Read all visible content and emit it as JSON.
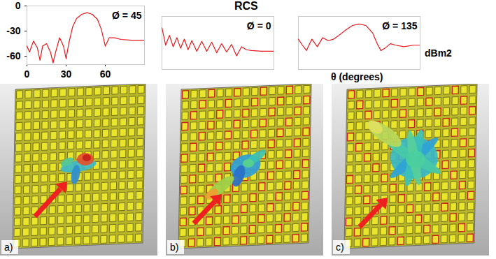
{
  "title": "RCS",
  "panels": [
    "a)",
    "b)",
    "c)"
  ],
  "chart_data": [
    {
      "type": "line",
      "annotation": "Ø = 45",
      "color": "#e8191e",
      "x": [
        0,
        2,
        5,
        8,
        10,
        12,
        15,
        18,
        20,
        22,
        25,
        28,
        30,
        32,
        35,
        38,
        42,
        46,
        50,
        54,
        57,
        60,
        63,
        67,
        72,
        80,
        90
      ],
      "values": [
        -48,
        -55,
        -42,
        -50,
        -65,
        -48,
        -45,
        -55,
        -68,
        -55,
        -38,
        -48,
        -63,
        -45,
        -25,
        -15,
        -10,
        -8,
        -10,
        -16,
        -28,
        -48,
        -38,
        -38,
        -40,
        -41,
        -41
      ],
      "xlim": [
        0,
        90
      ],
      "xticks": [
        0,
        30,
        60
      ],
      "ylim": [
        -70,
        0
      ],
      "yticks": [
        0,
        -30,
        -60
      ]
    },
    {
      "type": "line",
      "annotation": "Ø = 0",
      "color": "#e8191e",
      "tick_labels": false,
      "x": [
        0,
        3,
        6,
        9,
        12,
        15,
        18,
        21,
        24,
        28,
        32,
        36,
        40,
        44,
        48,
        52,
        56,
        60,
        64,
        68,
        72,
        80,
        90
      ],
      "values": [
        -15,
        -38,
        -25,
        -40,
        -28,
        -42,
        -30,
        -44,
        -32,
        -46,
        -33,
        -46,
        -34,
        -48,
        -36,
        -47,
        -37,
        -52,
        -40,
        -44,
        -45,
        -46,
        -46
      ],
      "xlim": [
        0,
        90
      ],
      "ylim": [
        -70,
        0
      ]
    },
    {
      "type": "line",
      "annotation": "Ø = 135",
      "x_label": "θ (degrees)",
      "y_label": "dBm2",
      "color": "#e8191e",
      "tick_labels": false,
      "x": [
        0,
        3,
        6,
        10,
        14,
        18,
        22,
        26,
        30,
        35,
        40,
        45,
        50,
        55,
        58,
        61,
        64,
        68,
        72,
        78,
        85,
        90
      ],
      "values": [
        -30,
        -38,
        -45,
        -30,
        -40,
        -28,
        -32,
        -30,
        -25,
        -18,
        -12,
        -10,
        -12,
        -22,
        -35,
        -45,
        -42,
        -36,
        -38,
        -40,
        -38,
        -38
      ],
      "xlim": [
        0,
        90
      ],
      "ylim": [
        -70,
        0
      ]
    }
  ]
}
